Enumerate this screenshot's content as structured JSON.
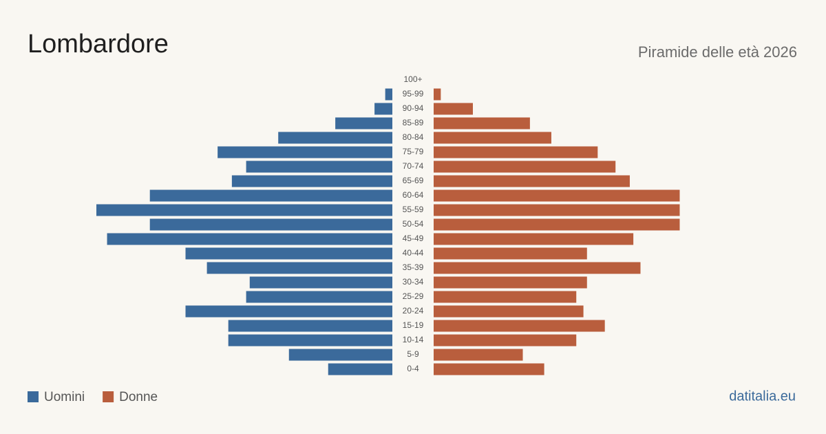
{
  "chart_data": {
    "type": "pyramid",
    "title": "Lombardore",
    "subtitle": "Piramide delle età 2026",
    "source": "datitalia.eu",
    "categories": [
      "100+",
      "95-99",
      "90-94",
      "85-89",
      "80-84",
      "75-79",
      "70-74",
      "65-69",
      "60-64",
      "55-59",
      "50-54",
      "45-49",
      "40-44",
      "35-39",
      "30-34",
      "25-29",
      "20-24",
      "15-19",
      "10-14",
      "5-9",
      "0-4"
    ],
    "series": [
      {
        "name": "Uomini",
        "color": "#3b6a9b",
        "values": [
          0,
          2,
          5,
          16,
          32,
          49,
          41,
          45,
          68,
          83,
          68,
          80,
          58,
          52,
          40,
          41,
          58,
          46,
          46,
          29,
          18
        ]
      },
      {
        "name": "Donne",
        "color": "#b95e3d",
        "values": [
          0,
          2,
          11,
          27,
          33,
          46,
          51,
          55,
          69,
          69,
          69,
          56,
          43,
          58,
          43,
          40,
          42,
          48,
          40,
          25,
          31
        ]
      }
    ]
  }
}
